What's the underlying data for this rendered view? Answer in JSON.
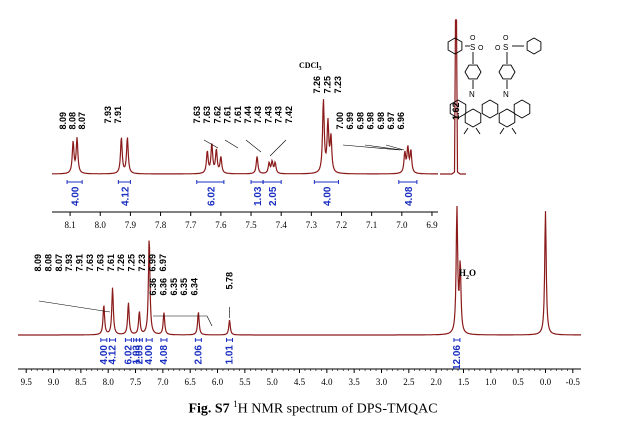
{
  "caption": {
    "label": "Fig. S7",
    "sup": "1",
    "text": "H NMR spectrum of DPS-TMQAC"
  },
  "chart_data": [
    {
      "type": "line",
      "panel": "full",
      "x_ticks": [
        "9.5",
        "9.0",
        "8.5",
        "8.0",
        "7.5",
        "7.0",
        "6.5",
        "6.0",
        "5.5",
        "5.0",
        "4.5",
        "4.0",
        "3.5",
        "3.0",
        "2.5",
        "2.0",
        "1.5",
        "1.0",
        "0.5",
        "0.0",
        "-0.5"
      ],
      "xlim": [
        9.65,
        -0.65
      ],
      "x_reversed": true,
      "line_color": "#8b1a1a",
      "peaks": [
        {
          "ppm": 8.08,
          "height": 0.3
        },
        {
          "ppm": 7.92,
          "height": 0.47
        },
        {
          "ppm": 7.63,
          "height": 0.32
        },
        {
          "ppm": 7.43,
          "height": 0.23
        },
        {
          "ppm": 7.25,
          "height": 0.98
        },
        {
          "ppm": 6.98,
          "height": 0.22
        },
        {
          "ppm": 6.35,
          "height": 0.23
        },
        {
          "ppm": 5.78,
          "height": 0.15
        },
        {
          "ppm": 1.62,
          "height": 1.25
        },
        {
          "ppm": 1.56,
          "height": 0.68
        },
        {
          "ppm": 0.0,
          "height": 1.24
        }
      ],
      "peak_labels_group_a": [
        "8.09",
        "8.08",
        "8.07",
        "7.93",
        "7.91",
        "7.63",
        "7.63",
        "7.61",
        "7.26",
        "7.25",
        "7.23",
        "6.99",
        "6.97"
      ],
      "peak_labels_group_b": [
        "6.36",
        "6.36",
        "6.35",
        "6.35",
        "6.34"
      ],
      "peak_label_single": "5.78",
      "annotation_h2o": {
        "H": "H",
        "sub": "2",
        "O": "O"
      },
      "integrals": [
        {
          "ppm": 8.08,
          "value": "4.00"
        },
        {
          "ppm": 7.92,
          "value": "4.12"
        },
        {
          "ppm": 7.63,
          "value": "6.02"
        },
        {
          "ppm": 7.48,
          "value": "1.03"
        },
        {
          "ppm": 7.43,
          "value": "2.05"
        },
        {
          "ppm": 7.25,
          "value": "4.00"
        },
        {
          "ppm": 6.98,
          "value": "4.08"
        },
        {
          "ppm": 6.35,
          "value": "2.06"
        },
        {
          "ppm": 5.78,
          "value": "1.01"
        },
        {
          "ppm": 1.62,
          "value": "12.06"
        }
      ]
    },
    {
      "type": "line",
      "panel": "inset",
      "x_ticks": [
        "8.1",
        "8.0",
        "7.9",
        "7.8",
        "7.7",
        "7.6",
        "7.5",
        "7.4",
        "7.3",
        "7.2",
        "7.1",
        "7.0",
        "6.9"
      ],
      "xlim": [
        8.16,
        6.88
      ],
      "x_reversed": true,
      "line_color": "#8b1a1a",
      "peaks": [
        {
          "ppm": 8.09,
          "height": 0.54
        },
        {
          "ppm": 8.077,
          "height": 0.6
        },
        {
          "ppm": 7.93,
          "height": 0.62
        },
        {
          "ppm": 7.91,
          "height": 0.62
        },
        {
          "ppm": 7.645,
          "height": 0.38
        },
        {
          "ppm": 7.63,
          "height": 0.5
        },
        {
          "ppm": 7.615,
          "height": 0.4
        },
        {
          "ppm": 7.6,
          "height": 0.28
        },
        {
          "ppm": 7.48,
          "height": 0.3
        },
        {
          "ppm": 7.44,
          "height": 0.18
        },
        {
          "ppm": 7.43,
          "height": 0.2
        },
        {
          "ppm": 7.42,
          "height": 0.18
        },
        {
          "ppm": 7.26,
          "height": 1.25
        },
        {
          "ppm": 7.245,
          "height": 0.85
        },
        {
          "ppm": 7.235,
          "height": 0.6
        },
        {
          "ppm": 6.99,
          "height": 0.35
        },
        {
          "ppm": 6.98,
          "height": 0.43
        },
        {
          "ppm": 6.97,
          "height": 0.38
        }
      ],
      "peak_labels_top": [
        "7.26",
        "7.25",
        "7.23"
      ],
      "annotation_solvent": {
        "base": "CDCl",
        "sub": "3"
      },
      "peak_labels_left": [
        "8.09",
        "8.08",
        "8.07"
      ],
      "peak_labels_mid": [
        "7.93",
        "7.91"
      ],
      "peak_labels_center": [
        "7.63",
        "7.63",
        "7.62",
        "7.61",
        "7.61",
        "7.44",
        "7.43",
        "7.43",
        "7.43",
        "7.42"
      ],
      "peak_labels_right": [
        "7.00",
        "6.99",
        "6.98",
        "6.98",
        "6.98",
        "6.97",
        "6.96"
      ],
      "peak_label_methyl": "1.62",
      "integrals": [
        {
          "from": 8.11,
          "to": 8.06,
          "value": "4.00"
        },
        {
          "from": 7.94,
          "to": 7.9,
          "value": "4.12"
        },
        {
          "from": 7.68,
          "to": 7.59,
          "value": "6.02"
        },
        {
          "from": 7.5,
          "to": 7.46,
          "value": "1.03"
        },
        {
          "from": 7.46,
          "to": 7.4,
          "value": "2.05"
        },
        {
          "from": 7.29,
          "to": 7.21,
          "value": "4.00"
        },
        {
          "from": 7.01,
          "to": 6.95,
          "value": "4.08"
        }
      ]
    }
  ],
  "structure": {
    "name": "DPS-TMQAC",
    "s_label": "S",
    "o_label": "O",
    "n_label": "N"
  }
}
